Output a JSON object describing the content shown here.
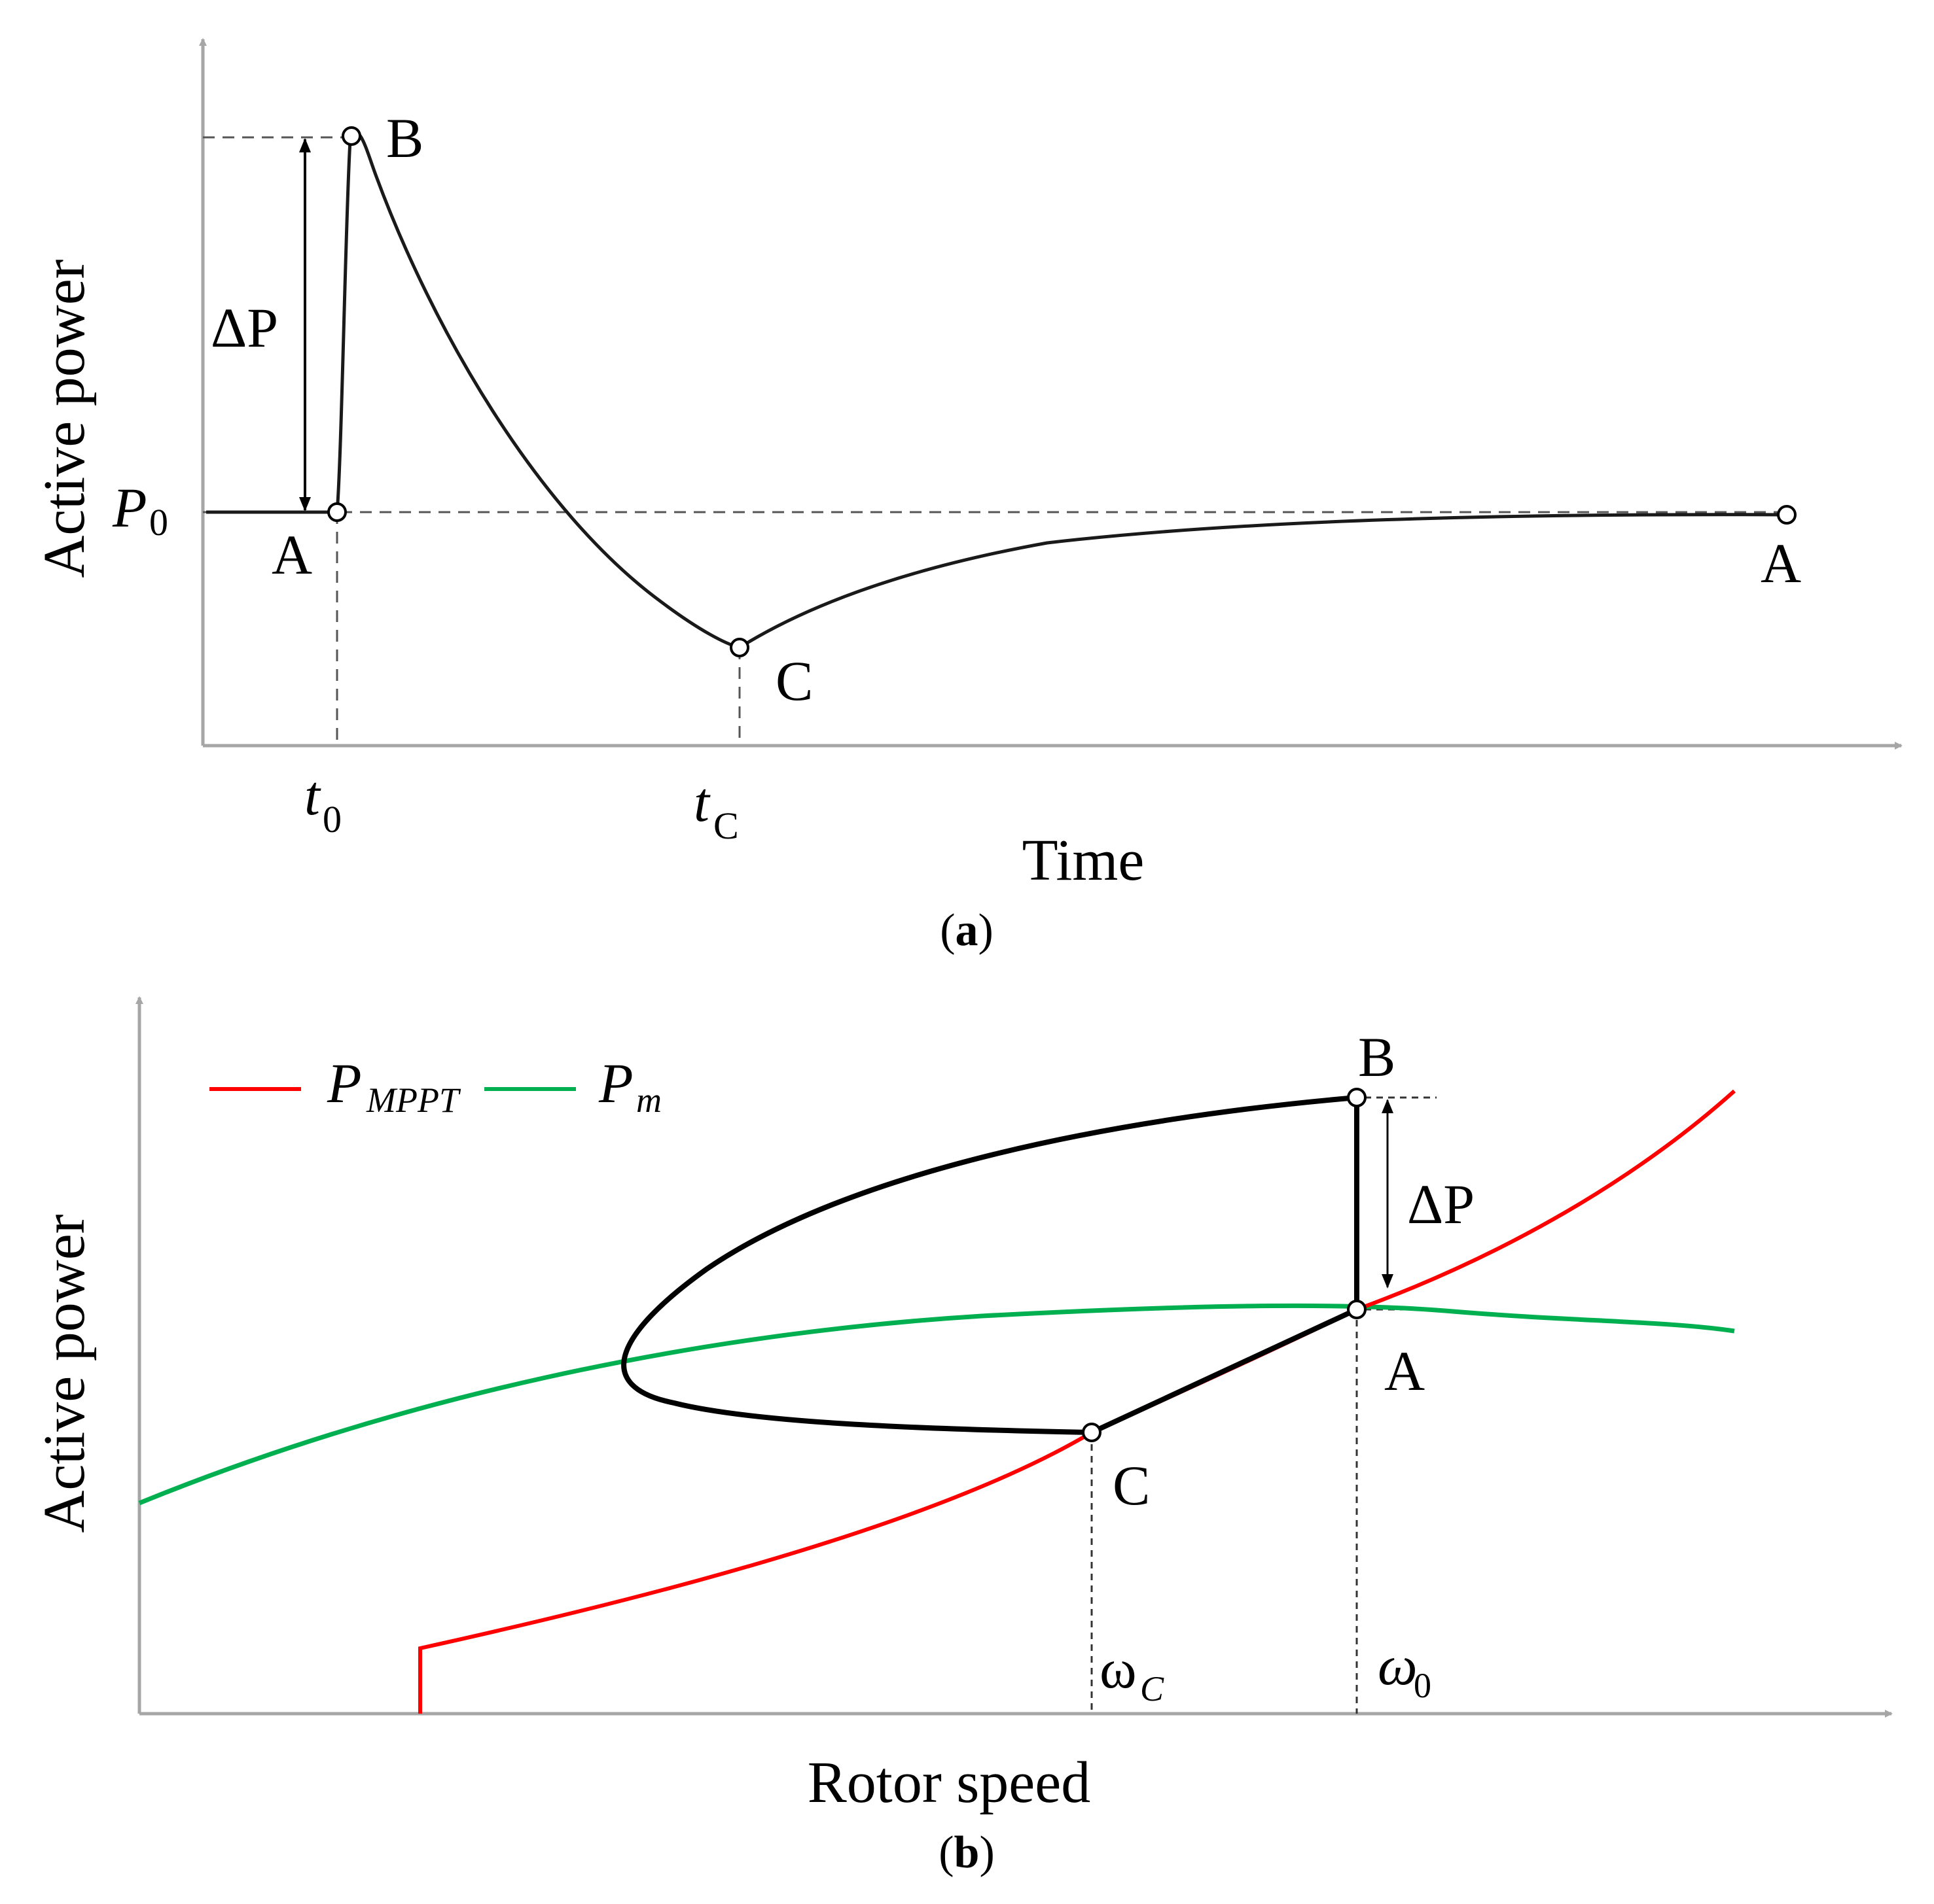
{
  "chart_data": [
    {
      "panel": "(a)",
      "type": "line",
      "ylabel": "Active power",
      "xlabel": "Time",
      "caption_letter": "a",
      "tick_labels": {
        "t0": "t",
        "t0_sub": "0",
        "tC": "t",
        "tC_sub": "C",
        "P0": "P",
        "P0_sub": "0"
      },
      "annotation": "ΔP",
      "points": [
        {
          "name": "A",
          "label": "A"
        },
        {
          "name": "B",
          "label": "B"
        },
        {
          "name": "C",
          "label": "C"
        },
        {
          "name": "A_end",
          "label": "A"
        }
      ],
      "series": [
        {
          "name": "Active power",
          "color": "#1a1a1a"
        }
      ]
    },
    {
      "panel": "(b)",
      "type": "line",
      "ylabel": "Active power",
      "xlabel": "Rotor speed",
      "caption_letter": "b",
      "annotation": "ΔP",
      "tick_labels": {
        "wC": "ω",
        "wC_sub": "C",
        "w0": "ω",
        "w0_sub": "0"
      },
      "legend": [
        {
          "name": "P",
          "sub": "MPPT",
          "color": "#ff0000"
        },
        {
          "name": "P",
          "sub": "m",
          "color": "#00b050"
        }
      ],
      "points": [
        {
          "name": "A",
          "label": "A"
        },
        {
          "name": "B",
          "label": "B"
        },
        {
          "name": "C",
          "label": "C"
        }
      ],
      "trajectory_color": "#000000"
    }
  ]
}
